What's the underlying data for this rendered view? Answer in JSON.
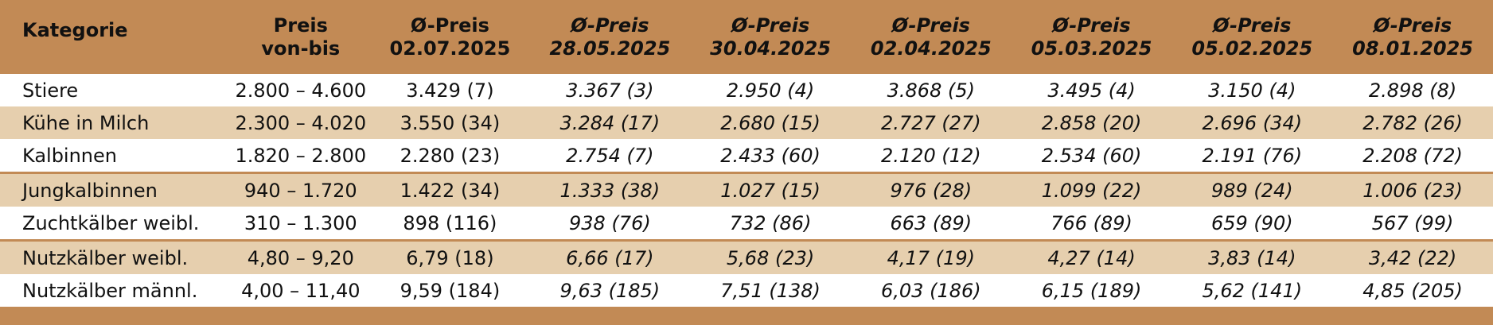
{
  "table": {
    "headers": [
      {
        "lines": [
          "Kategorie"
        ]
      },
      {
        "lines": [
          "Preis",
          "von-bis"
        ]
      },
      {
        "lines": [
          "Ø-Preis",
          "02.07.2025"
        ]
      },
      {
        "lines": [
          "Ø-Preis",
          "28.05.2025"
        ]
      },
      {
        "lines": [
          "Ø-Preis",
          "30.04.2025"
        ]
      },
      {
        "lines": [
          "Ø-Preis",
          "02.04.2025"
        ]
      },
      {
        "lines": [
          "Ø-Preis",
          "05.03.2025"
        ]
      },
      {
        "lines": [
          "Ø-Preis",
          "05.02.2025"
        ]
      },
      {
        "lines": [
          "Ø-Preis",
          "08.01.2025"
        ]
      }
    ],
    "rows": [
      [
        "Stiere",
        "2.800 – 4.600",
        "3.429 (7)",
        "3.367 (3)",
        "2.950 (4)",
        "3.868 (5)",
        "3.495 (4)",
        "3.150 (4)",
        "2.898 (8)"
      ],
      [
        "Kühe in Milch",
        "2.300 – 4.020",
        "3.550 (34)",
        "3.284 (17)",
        "2.680 (15)",
        "2.727 (27)",
        "2.858 (20)",
        "2.696 (34)",
        "2.782 (26)"
      ],
      [
        "Kalbinnen",
        "1.820 – 2.800",
        "2.280 (23)",
        "2.754 (7)",
        "2.433 (60)",
        "2.120 (12)",
        "2.534 (60)",
        "2.191 (76)",
        "2.208 (72)"
      ],
      [
        "Jungkalbinnen",
        "940 – 1.720",
        "1.422 (34)",
        "1.333 (38)",
        "1.027 (15)",
        "976 (28)",
        "1.099 (22)",
        "989 (24)",
        "1.006 (23)"
      ],
      [
        "Zuchtkälber weibl.",
        "310 – 1.300",
        "898 (116)",
        "938 (76)",
        "732 (86)",
        "663 (89)",
        "766 (89)",
        "659 (90)",
        "567 (99)"
      ],
      [
        "Nutzkälber weibl.",
        "4,80 – 9,20",
        "6,79 (18)",
        "6,66 (17)",
        "5,68 (23)",
        "4,17 (19)",
        "4,27 (14)",
        "3,83 (14)",
        "3,42 (22)"
      ],
      [
        "Nutzkälber männl.",
        "4,00 – 11,40",
        "9,59 (184)",
        "9,63 (185)",
        "7,51 (138)",
        "6,03 (186)",
        "6,15 (189)",
        "5,62 (141)",
        "4,85 (205)"
      ]
    ]
  },
  "colors": {
    "header_band": "#c28a55",
    "stripe": "#e6cfae",
    "row_bg": "#ffffff"
  }
}
